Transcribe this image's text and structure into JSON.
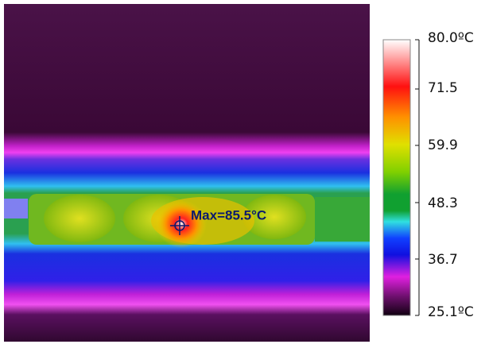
{
  "image": {
    "annotation": "Max=85.5°C"
  },
  "scale": {
    "labels": [
      "80.0ºC",
      "71.5",
      "59.9",
      "48.3",
      "36.7",
      "25.1ºC"
    ]
  }
}
